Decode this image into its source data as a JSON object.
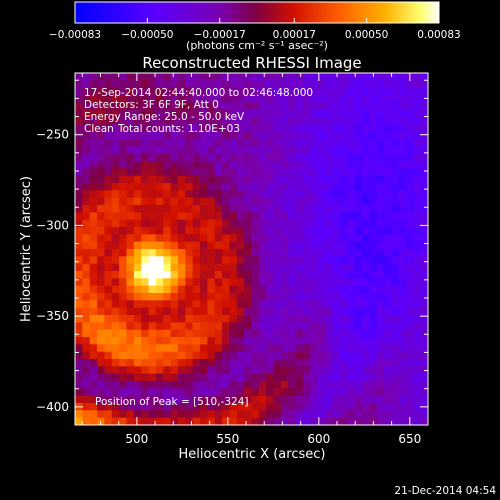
{
  "chart_data": {
    "type": "heatmap",
    "title": "Reconstructed RHESSI Image",
    "xlabel": "Heliocentric X (arcsec)",
    "ylabel": "Heliocentric Y (arcsec)",
    "xlim": [
      466,
      660
    ],
    "ylim": [
      -410,
      -216
    ],
    "x_ticks": [
      500,
      550,
      600,
      650
    ],
    "y_ticks": [
      -250,
      -300,
      -350,
      -400
    ],
    "x_tick_labels": [
      "500",
      "550",
      "600",
      "650"
    ],
    "y_tick_labels": [
      "−250",
      "−300",
      "−350",
      "−400"
    ],
    "colorbar": {
      "min": -0.00083,
      "max": 0.00083,
      "ticks": [
        -0.00083,
        -0.0005,
        -0.00017,
        0.00017,
        0.0005,
        0.00083
      ],
      "tick_labels": [
        "−0.00083",
        "−0.00050",
        "−0.00017",
        "0.00017",
        "0.00050",
        "0.00083"
      ],
      "unit_label": "(photons cm⁻² s⁻¹ asec⁻²)",
      "colors": [
        "#0000ff",
        "#5500ff",
        "#8800cc",
        "#aa0033",
        "#ff3300",
        "#ff8800",
        "#ffcc00",
        "#ffff66",
        "#ffffff"
      ]
    },
    "annotations": [
      "17-Sep-2014 02:44:40.000 to 02:46:48.000",
      "Detectors: 3F 6F 9F, Att 0",
      "Energy Range: 25.0 - 50.0 keV",
      "Clean",
      "Total counts: 1.10E+03",
      "Position of Peak = [510,-324]"
    ],
    "peak": [
      510,
      -324
    ],
    "grid": false,
    "legend": "none"
  },
  "footer_date": "21-Dec-2014 04:54"
}
